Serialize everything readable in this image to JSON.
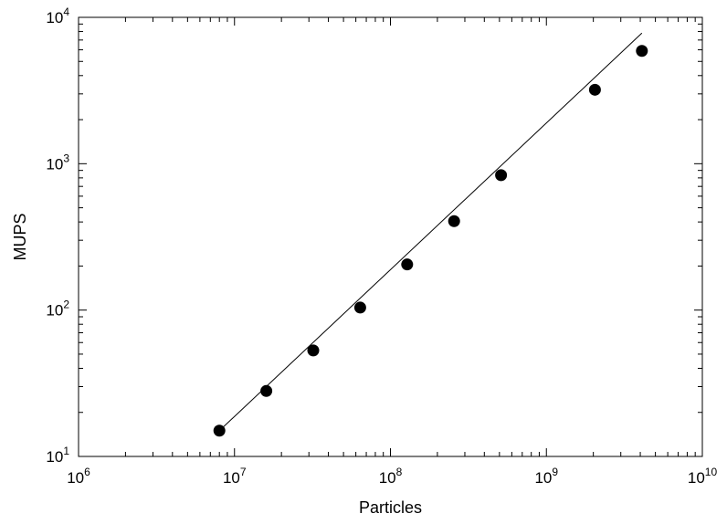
{
  "chart_data": {
    "type": "scatter",
    "title": "",
    "xlabel": "Particles",
    "ylabel": "MUPS",
    "x_scale": "log",
    "y_scale": "log",
    "xlim": [
      1000000,
      10000000000
    ],
    "ylim": [
      10,
      10000
    ],
    "grid": false,
    "x_ticks": [
      {
        "base": "10",
        "exp": "6"
      },
      {
        "base": "10",
        "exp": "7"
      },
      {
        "base": "10",
        "exp": "8"
      },
      {
        "base": "10",
        "exp": "9"
      },
      {
        "base": "10",
        "exp": "10"
      }
    ],
    "y_ticks": [
      {
        "base": "10",
        "exp": "1"
      },
      {
        "base": "10",
        "exp": "2"
      },
      {
        "base": "10",
        "exp": "3"
      },
      {
        "base": "10",
        "exp": "4"
      }
    ],
    "series": [
      {
        "marker": "filled-circle",
        "x": [
          8000000,
          16000000,
          32000000,
          64000000,
          128000000,
          256000000,
          512000000,
          2048000000,
          4096000000
        ],
        "y": [
          15,
          28,
          53,
          104,
          205,
          405,
          835,
          3200,
          5900
        ]
      }
    ],
    "fit_line": {
      "x": [
        8000000,
        4096000000
      ],
      "y": [
        15,
        7800
      ]
    },
    "colors": {
      "marks": "#000000",
      "background": "#ffffff"
    }
  }
}
